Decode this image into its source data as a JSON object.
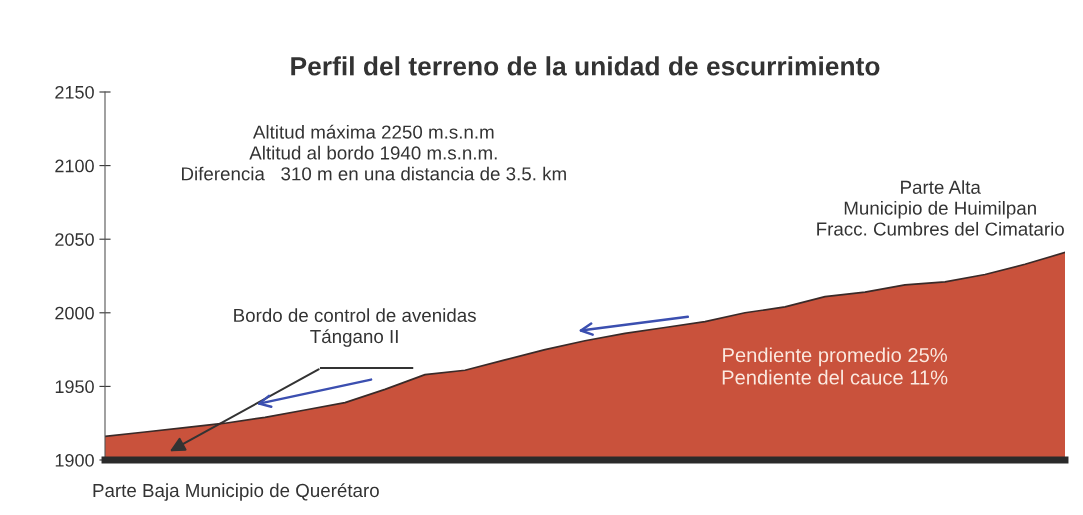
{
  "chart_data": {
    "type": "area",
    "title": "Perfil del terreno de la unidad de escurrimiento",
    "categories": [
      null,
      null,
      null,
      null,
      null,
      null,
      null,
      null,
      null,
      null,
      null,
      null,
      null,
      null,
      null,
      null,
      null,
      null,
      null,
      null,
      null,
      null,
      null,
      null,
      null
    ],
    "series": [
      {
        "color": "#c9523c",
        "values": [
          1916,
          1919,
          1922,
          1925,
          1929,
          1934,
          1939,
          1948,
          1958,
          1961,
          1968,
          1975,
          1981,
          1986,
          1990,
          1994,
          2000,
          2004,
          2011,
          2014,
          2019,
          2021,
          2026,
          2033,
          2041
        ]
      }
    ],
    "ylim": [
      1900,
      2150
    ],
    "yticks": [
      1900,
      1950,
      2000,
      2050,
      2100,
      2150
    ],
    "grid": false,
    "annotations": [
      "Altitud máxima 2250 m.s.n.m\nAltitud al bordo 1940 m.s.n.m.\nDiferencia   310 m en una distancia de 3.5. km",
      "Parte Alta\nMunicipio de Huimilpan\nFracc. Cumbres del Cimatario",
      "Bordo de control de avenidas\nTángano II",
      "Pendiente promedio 25%\nPendiente del cauce 11%",
      "Parte Baja Municipio de Querétaro"
    ]
  }
}
